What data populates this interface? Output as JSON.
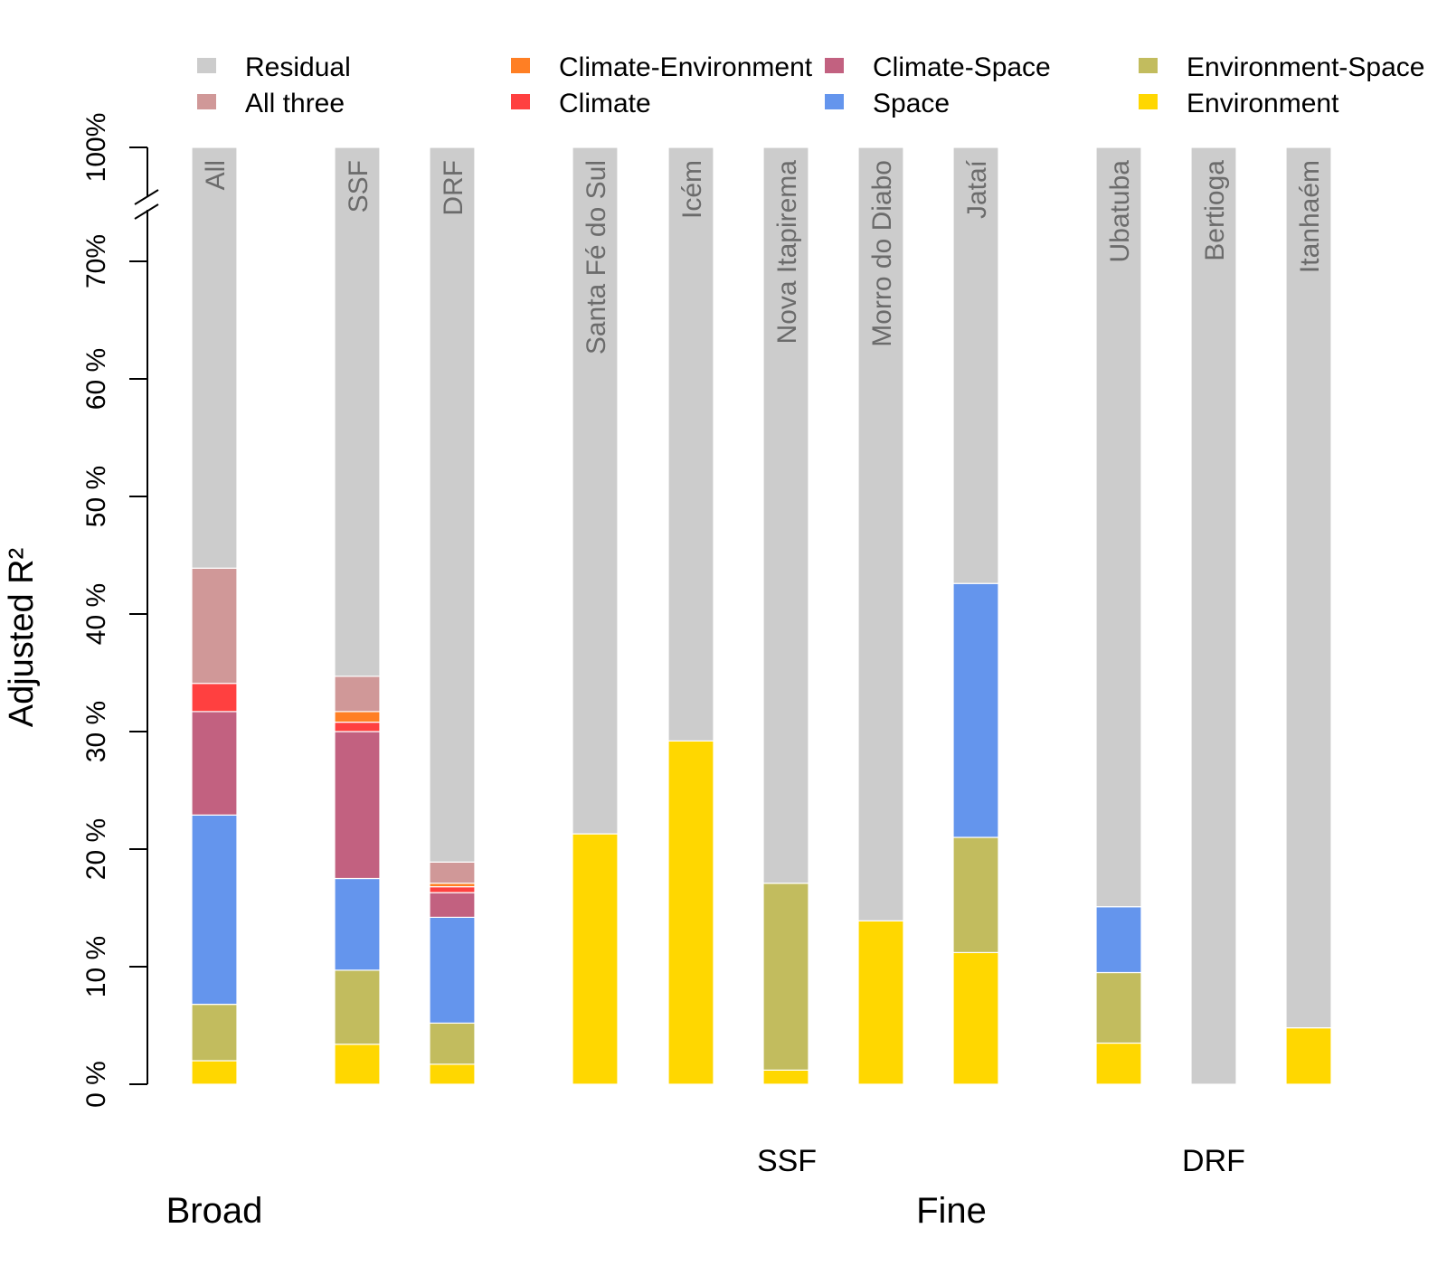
{
  "chart_data": {
    "type": "bar",
    "stacked": true,
    "ylabel": "Adjusted R²",
    "y_ticks": [
      "0 %",
      "10 %",
      "20 %",
      "30 %",
      "40 %",
      "50 %",
      "60 %",
      "70%",
      "100%"
    ],
    "y_axis_break": "between 70% and 100%",
    "legend": [
      {
        "key": "residual",
        "label": "Residual",
        "color": "#CCCCCC"
      },
      {
        "key": "all_three",
        "label": "All three",
        "color": "#D09898"
      },
      {
        "key": "climate_environment",
        "label": "Climate-Environment",
        "color": "#FF7F24"
      },
      {
        "key": "climate",
        "label": "Climate",
        "color": "#FF4040"
      },
      {
        "key": "climate_space",
        "label": "Climate-Space",
        "color": "#C26180"
      },
      {
        "key": "space",
        "label": "Space",
        "color": "#6495ED"
      },
      {
        "key": "environment_space",
        "label": "Environment-Space",
        "color": "#C2BC5E"
      },
      {
        "key": "environment",
        "label": "Environment",
        "color": "#FFD700"
      }
    ],
    "stack_order": [
      "environment",
      "environment_space",
      "space",
      "climate_space",
      "climate",
      "climate_environment",
      "all_three",
      "residual"
    ],
    "bars": [
      {
        "label": "All",
        "values": {
          "environment": 2.0,
          "environment_space": 4.8,
          "space": 16.1,
          "climate_space": 8.8,
          "climate": 2.4,
          "climate_environment": 0.0,
          "all_three": 9.8,
          "residual": 56.1
        }
      },
      {
        "label": "SSF",
        "values": {
          "environment": 3.4,
          "environment_space": 6.3,
          "space": 7.8,
          "climate_space": 12.5,
          "climate": 0.8,
          "climate_environment": 0.9,
          "all_three": 3.0,
          "residual": 65.3
        }
      },
      {
        "label": "DRF",
        "values": {
          "environment": 1.7,
          "environment_space": 3.5,
          "space": 9.0,
          "climate_space": 2.1,
          "climate": 0.5,
          "climate_environment": 0.3,
          "all_three": 1.8,
          "residual": 81.1
        }
      },
      {
        "label": "Santa Fé do Sul",
        "values": {
          "environment": 21.3,
          "environment_space": 0,
          "space": 0,
          "climate_space": 0,
          "climate": 0,
          "climate_environment": 0,
          "all_three": 0,
          "residual": 78.7
        }
      },
      {
        "label": "Icém",
        "values": {
          "environment": 29.2,
          "environment_space": 0,
          "space": 0,
          "climate_space": 0,
          "climate": 0,
          "climate_environment": 0,
          "all_three": 0,
          "residual": 70.8
        }
      },
      {
        "label": "Nova Itapirema",
        "values": {
          "environment": 1.2,
          "environment_space": 15.9,
          "space": 0,
          "climate_space": 0,
          "climate": 0,
          "climate_environment": 0,
          "all_three": 0,
          "residual": 82.9
        }
      },
      {
        "label": "Morro do Diabo",
        "values": {
          "environment": 13.9,
          "environment_space": 0,
          "space": 0,
          "climate_space": 0,
          "climate": 0,
          "climate_environment": 0,
          "all_three": 0,
          "residual": 86.1
        }
      },
      {
        "label": "Jataí",
        "values": {
          "environment": 11.2,
          "environment_space": 9.8,
          "space": 21.6,
          "climate_space": 0,
          "climate": 0,
          "climate_environment": 0,
          "all_three": 0,
          "residual": 57.4
        }
      },
      {
        "label": "Ubatuba",
        "values": {
          "environment": 3.5,
          "environment_space": 6.0,
          "space": 5.6,
          "climate_space": 0,
          "climate": 0,
          "climate_environment": 0,
          "all_three": 0,
          "residual": 84.9
        }
      },
      {
        "label": "Bertioga",
        "values": {
          "environment": 0,
          "environment_space": 0,
          "space": 0,
          "climate_space": 0,
          "climate": 0,
          "climate_environment": 0,
          "all_three": 0,
          "residual": 100
        }
      },
      {
        "label": "Itanhaém",
        "values": {
          "environment": 4.8,
          "environment_space": 0,
          "space": 0,
          "climate_space": 0,
          "climate": 0,
          "climate_environment": 0,
          "all_three": 0,
          "residual": 95.2
        }
      }
    ],
    "group_labels": {
      "ssf": "SSF",
      "drf": "DRF",
      "broad": "Broad",
      "fine": "Fine"
    }
  }
}
